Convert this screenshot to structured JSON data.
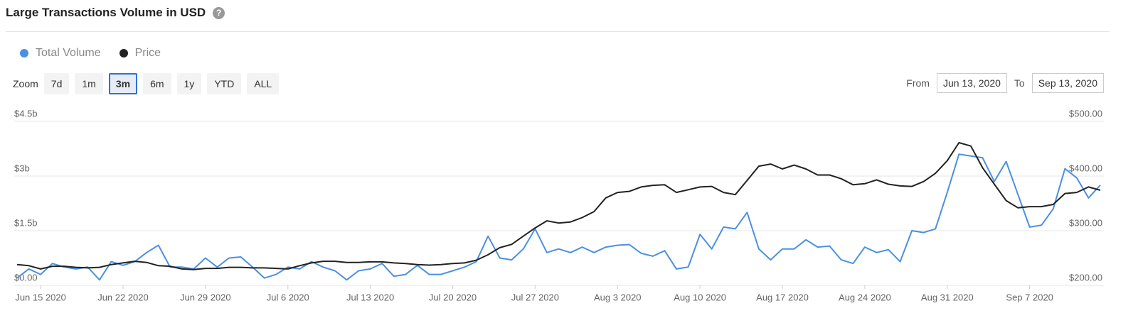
{
  "header": {
    "title": "Large Transactions Volume in USD",
    "help": "?"
  },
  "zoom": {
    "label": "Zoom",
    "buttons": [
      "7d",
      "1m",
      "3m",
      "6m",
      "1y",
      "YTD",
      "ALL"
    ],
    "selected": "3m"
  },
  "range": {
    "from_label": "From",
    "from": "Jun 13, 2020",
    "to_label": "To",
    "to": "Sep 13, 2020"
  },
  "chart_data": {
    "type": "line",
    "x": [
      "2020-06-13",
      "2020-06-14",
      "2020-06-15",
      "2020-06-16",
      "2020-06-17",
      "2020-06-18",
      "2020-06-19",
      "2020-06-20",
      "2020-06-21",
      "2020-06-22",
      "2020-06-23",
      "2020-06-24",
      "2020-06-25",
      "2020-06-26",
      "2020-06-27",
      "2020-06-28",
      "2020-06-29",
      "2020-06-30",
      "2020-07-01",
      "2020-07-02",
      "2020-07-03",
      "2020-07-04",
      "2020-07-05",
      "2020-07-06",
      "2020-07-07",
      "2020-07-08",
      "2020-07-09",
      "2020-07-10",
      "2020-07-11",
      "2020-07-12",
      "2020-07-13",
      "2020-07-14",
      "2020-07-15",
      "2020-07-16",
      "2020-07-17",
      "2020-07-18",
      "2020-07-19",
      "2020-07-20",
      "2020-07-21",
      "2020-07-22",
      "2020-07-23",
      "2020-07-24",
      "2020-07-25",
      "2020-07-26",
      "2020-07-27",
      "2020-07-28",
      "2020-07-29",
      "2020-07-30",
      "2020-07-31",
      "2020-08-01",
      "2020-08-02",
      "2020-08-03",
      "2020-08-04",
      "2020-08-05",
      "2020-08-06",
      "2020-08-07",
      "2020-08-08",
      "2020-08-09",
      "2020-08-10",
      "2020-08-11",
      "2020-08-12",
      "2020-08-13",
      "2020-08-14",
      "2020-08-15",
      "2020-08-16",
      "2020-08-17",
      "2020-08-18",
      "2020-08-19",
      "2020-08-20",
      "2020-08-21",
      "2020-08-22",
      "2020-08-23",
      "2020-08-24",
      "2020-08-25",
      "2020-08-26",
      "2020-08-27",
      "2020-08-28",
      "2020-08-29",
      "2020-08-30",
      "2020-08-31",
      "2020-09-01",
      "2020-09-02",
      "2020-09-03",
      "2020-09-04",
      "2020-09-05",
      "2020-09-06",
      "2020-09-07",
      "2020-09-08",
      "2020-09-09",
      "2020-09-10",
      "2020-09-11",
      "2020-09-12",
      "2020-09-13"
    ],
    "series": [
      {
        "name": "Total Volume",
        "color": "#4a90e2",
        "axis": "y",
        "values": [
          0.2,
          0.45,
          0.3,
          0.6,
          0.5,
          0.45,
          0.5,
          0.15,
          0.65,
          0.55,
          0.65,
          0.9,
          1.1,
          0.5,
          0.5,
          0.45,
          0.75,
          0.5,
          0.75,
          0.78,
          0.5,
          0.2,
          0.3,
          0.5,
          0.45,
          0.65,
          0.5,
          0.4,
          0.15,
          0.4,
          0.45,
          0.6,
          0.25,
          0.3,
          0.55,
          0.3,
          0.3,
          0.4,
          0.5,
          0.65,
          1.35,
          0.75,
          0.7,
          1.0,
          1.55,
          0.9,
          1.0,
          0.9,
          1.05,
          0.9,
          1.05,
          1.1,
          1.12,
          0.88,
          0.8,
          0.95,
          0.45,
          0.5,
          1.4,
          1.0,
          1.6,
          1.55,
          2.0,
          1.0,
          0.7,
          1.0,
          1.0,
          1.25,
          1.05,
          1.08,
          0.7,
          0.6,
          1.05,
          0.9,
          0.98,
          0.65,
          1.5,
          1.45,
          1.55,
          2.55,
          3.6,
          3.55,
          3.5,
          2.85,
          3.4,
          2.5,
          1.6,
          1.65,
          2.1,
          3.2,
          2.95,
          2.4,
          2.75
        ]
      },
      {
        "name": "Price",
        "color": "#222222",
        "axis": "y2",
        "values": [
          238,
          236,
          230,
          235,
          235,
          233,
          232,
          233,
          238,
          241,
          244,
          242,
          236,
          235,
          230,
          229,
          231,
          231,
          233,
          233,
          232,
          232,
          231,
          230,
          236,
          241,
          244,
          244,
          242,
          242,
          243,
          243,
          241,
          240,
          238,
          237,
          238,
          240,
          241,
          246,
          256,
          269,
          275,
          290,
          305,
          318,
          314,
          316,
          324,
          335,
          360,
          370,
          372,
          380,
          383,
          384,
          370,
          375,
          380,
          381,
          370,
          366,
          392,
          418,
          422,
          413,
          420,
          413,
          402,
          402,
          395,
          384,
          386,
          393,
          385,
          382,
          381,
          390,
          405,
          428,
          461,
          455,
          415,
          385,
          355,
          342,
          344,
          344,
          348,
          368,
          370,
          380,
          374
        ]
      }
    ],
    "ylim": [
      0,
      4.5
    ],
    "yticks": [
      {
        "value": 0,
        "label": "$0.00"
      },
      {
        "value": 1.5,
        "label": "$1.5b"
      },
      {
        "value": 3,
        "label": "$3b"
      },
      {
        "value": 4.5,
        "label": "$4.5b"
      }
    ],
    "y2lim": [
      200,
      500
    ],
    "y2ticks": [
      {
        "value": 200,
        "label": "$200.00"
      },
      {
        "value": 300,
        "label": "$300.00"
      },
      {
        "value": 400,
        "label": "$400.00"
      },
      {
        "value": 500,
        "label": "$500.00"
      }
    ],
    "xticks": [
      {
        "value": "2020-06-15",
        "label": "Jun 15 2020"
      },
      {
        "value": "2020-06-22",
        "label": "Jun 22 2020"
      },
      {
        "value": "2020-06-29",
        "label": "Jun 29 2020"
      },
      {
        "value": "2020-07-06",
        "label": "Jul 6 2020"
      },
      {
        "value": "2020-07-13",
        "label": "Jul 13 2020"
      },
      {
        "value": "2020-07-20",
        "label": "Jul 20 2020"
      },
      {
        "value": "2020-07-27",
        "label": "Jul 27 2020"
      },
      {
        "value": "2020-08-03",
        "label": "Aug 3 2020"
      },
      {
        "value": "2020-08-10",
        "label": "Aug 10 2020"
      },
      {
        "value": "2020-08-17",
        "label": "Aug 17 2020"
      },
      {
        "value": "2020-08-24",
        "label": "Aug 24 2020"
      },
      {
        "value": "2020-08-31",
        "label": "Aug 31 2020"
      },
      {
        "value": "2020-09-07",
        "label": "Sep 7 2020"
      }
    ],
    "grid": true
  }
}
